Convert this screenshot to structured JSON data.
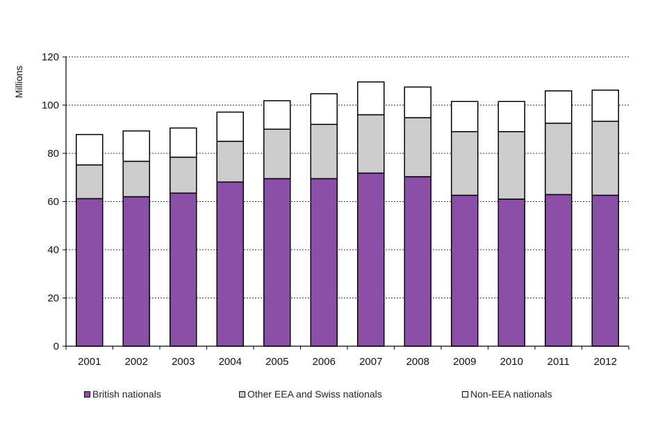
{
  "chart_data": {
    "type": "bar",
    "stacked": true,
    "title": "",
    "xlabel": "",
    "ylabel": "Millions",
    "ylim": [
      0,
      120
    ],
    "yticks": [
      0,
      20,
      40,
      60,
      80,
      100,
      120
    ],
    "grid": true,
    "categories": [
      "2001",
      "2002",
      "2003",
      "2004",
      "2005",
      "2006",
      "2007",
      "2008",
      "2009",
      "2010",
      "2011",
      "2012"
    ],
    "series": [
      {
        "name": "British nationals",
        "color": "#8B4FA8",
        "values": [
          61.2,
          62.0,
          63.5,
          68.1,
          69.5,
          69.5,
          71.8,
          70.3,
          62.6,
          61.0,
          62.9,
          62.6
        ]
      },
      {
        "name": "Other EEA and Swiss nationals",
        "color": "#CCCCCC",
        "values": [
          14.0,
          14.7,
          14.9,
          16.9,
          20.5,
          22.5,
          24.2,
          24.5,
          26.4,
          28.0,
          29.6,
          30.7
        ]
      },
      {
        "name": "Non-EEA nationals",
        "color": "#FFFFFF",
        "values": [
          12.6,
          12.6,
          12.1,
          12.1,
          11.8,
          12.7,
          13.6,
          12.7,
          12.5,
          12.5,
          13.4,
          12.9
        ]
      }
    ],
    "legend_position": "bottom"
  }
}
